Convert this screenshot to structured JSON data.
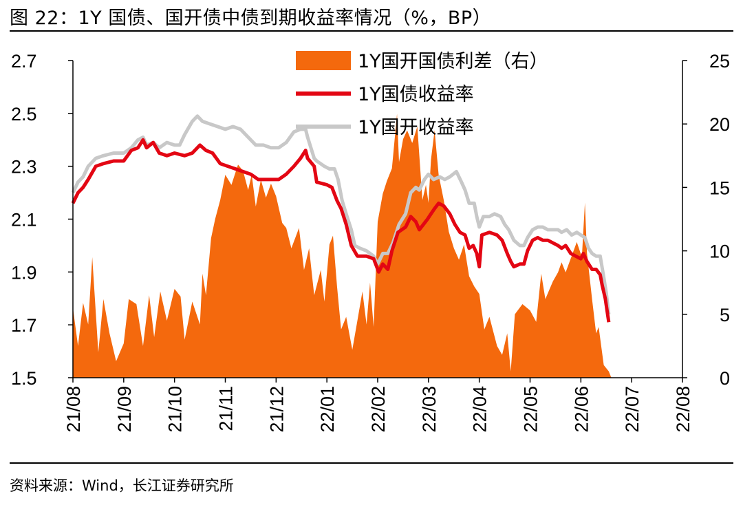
{
  "figure": {
    "title": "图 22：1Y 国债、国开债中债到期收益率情况（%，BP）",
    "source": "资料来源：Wind，长江证券研究所"
  },
  "colors": {
    "spread": "#F4690D",
    "treasury": "#E30613",
    "cdb": "#C8C8C8",
    "axis": "#000000"
  },
  "chart_data": {
    "type": "line+area",
    "title": "1Y 国债、国开债中债到期收益率情况（%，BP）",
    "left_axis": {
      "ylim": [
        1.5,
        2.7
      ],
      "ticks": [
        "2.7",
        "2.5",
        "2.3",
        "2.1",
        "1.9",
        "1.7",
        "1.5"
      ]
    },
    "right_axis": {
      "ylim": [
        0,
        25
      ],
      "ticks": [
        "25",
        "20",
        "15",
        "10",
        "5",
        "0"
      ]
    },
    "x_ticks": [
      "21/08",
      "21/09",
      "21/10",
      "21/11",
      "21/12",
      "22/01",
      "22/02",
      "22/03",
      "22/04",
      "22/05",
      "22/06",
      "22/07",
      "22/08"
    ],
    "legend_position": "top-center",
    "series": [
      {
        "name": "1Y国开国债利差（右）",
        "axis": "right",
        "kind": "area",
        "points": [
          [
            0,
            5.5
          ],
          [
            0.1,
            2.5
          ],
          [
            0.2,
            5.9
          ],
          [
            0.3,
            4.2
          ],
          [
            0.38,
            9.5
          ],
          [
            0.5,
            2.0
          ],
          [
            0.6,
            6.2
          ],
          [
            0.72,
            3.5
          ],
          [
            0.85,
            1.3
          ],
          [
            1.0,
            2.7
          ],
          [
            1.1,
            6.2
          ],
          [
            1.25,
            5.8
          ],
          [
            1.38,
            2.5
          ],
          [
            1.5,
            6.5
          ],
          [
            1.6,
            3.2
          ],
          [
            1.72,
            6.8
          ],
          [
            1.85,
            4.5
          ],
          [
            2.0,
            7.0
          ],
          [
            2.12,
            6.4
          ],
          [
            2.2,
            3.0
          ],
          [
            2.35,
            6.0
          ],
          [
            2.5,
            4.2
          ],
          [
            2.55,
            8.2
          ],
          [
            2.62,
            6.5
          ],
          [
            2.72,
            11.0
          ],
          [
            2.8,
            12.5
          ],
          [
            2.9,
            14.0
          ],
          [
            3.0,
            16.0
          ],
          [
            3.12,
            15.2
          ],
          [
            3.25,
            16.8
          ],
          [
            3.35,
            16.3
          ],
          [
            3.45,
            14.8
          ],
          [
            3.52,
            16.0
          ],
          [
            3.6,
            13.5
          ],
          [
            3.7,
            15.6
          ],
          [
            3.8,
            14.2
          ],
          [
            3.9,
            15.3
          ],
          [
            4.0,
            14.3
          ],
          [
            4.12,
            12.2
          ],
          [
            4.2,
            11.8
          ],
          [
            4.3,
            10.2
          ],
          [
            4.45,
            11.8
          ],
          [
            4.55,
            8.5
          ],
          [
            4.65,
            10.2
          ],
          [
            4.75,
            6.5
          ],
          [
            4.88,
            8.5
          ],
          [
            4.95,
            6.0
          ],
          [
            5.05,
            10.5
          ],
          [
            5.12,
            11.2
          ],
          [
            5.2,
            7.2
          ],
          [
            5.28,
            3.8
          ],
          [
            5.38,
            4.8
          ],
          [
            5.5,
            2.2
          ],
          [
            5.6,
            4.5
          ],
          [
            5.7,
            6.8
          ],
          [
            5.78,
            4.2
          ],
          [
            5.85,
            7.5
          ],
          [
            5.92,
            4.0
          ],
          [
            6.0,
            12.3
          ],
          [
            6.1,
            14.5
          ],
          [
            6.18,
            15.5
          ],
          [
            6.28,
            16.5
          ],
          [
            6.38,
            20.8
          ],
          [
            6.42,
            17.0
          ],
          [
            6.5,
            18.8
          ],
          [
            6.58,
            19.5
          ],
          [
            6.68,
            18.5
          ],
          [
            6.78,
            19.8
          ],
          [
            6.88,
            14.0
          ],
          [
            6.95,
            15.2
          ],
          [
            7.0,
            13.8
          ],
          [
            7.05,
            17.2
          ],
          [
            7.12,
            19.5
          ],
          [
            7.2,
            16.0
          ],
          [
            7.3,
            14.0
          ],
          [
            7.4,
            11.5
          ],
          [
            7.5,
            10.2
          ],
          [
            7.6,
            9.3
          ],
          [
            7.7,
            10.5
          ],
          [
            7.8,
            8.0
          ],
          [
            7.9,
            7.2
          ],
          [
            8.0,
            6.6
          ],
          [
            8.1,
            3.8
          ],
          [
            8.2,
            4.8
          ],
          [
            8.35,
            2.5
          ],
          [
            8.45,
            1.8
          ],
          [
            8.55,
            3.5
          ],
          [
            8.62,
            0.5
          ],
          [
            8.7,
            5.0
          ],
          [
            8.85,
            5.8
          ],
          [
            9.0,
            5.3
          ],
          [
            9.12,
            4.4
          ],
          [
            9.22,
            8.2
          ],
          [
            9.3,
            6.2
          ],
          [
            9.45,
            7.6
          ],
          [
            9.55,
            8.3
          ],
          [
            9.62,
            9.1
          ],
          [
            9.7,
            8.3
          ],
          [
            9.82,
            9.6
          ],
          [
            9.92,
            10.7
          ],
          [
            10.02,
            9.5
          ],
          [
            10.08,
            13.8
          ],
          [
            10.12,
            9.8
          ],
          [
            10.22,
            6.2
          ],
          [
            10.3,
            3.5
          ],
          [
            10.35,
            4.0
          ],
          [
            10.45,
            1.0
          ],
          [
            10.55,
            0.5
          ],
          [
            10.6,
            0
          ]
        ]
      },
      {
        "name": "1Y国债收益率",
        "axis": "left",
        "kind": "line",
        "points": [
          [
            0,
            2.16
          ],
          [
            0.1,
            2.2
          ],
          [
            0.2,
            2.22
          ],
          [
            0.3,
            2.25
          ],
          [
            0.45,
            2.3
          ],
          [
            0.6,
            2.31
          ],
          [
            0.8,
            2.32
          ],
          [
            1.0,
            2.32
          ],
          [
            1.15,
            2.36
          ],
          [
            1.28,
            2.37
          ],
          [
            1.38,
            2.4
          ],
          [
            1.45,
            2.37
          ],
          [
            1.58,
            2.39
          ],
          [
            1.7,
            2.35
          ],
          [
            1.85,
            2.34
          ],
          [
            2.0,
            2.35
          ],
          [
            2.2,
            2.34
          ],
          [
            2.35,
            2.35
          ],
          [
            2.5,
            2.38
          ],
          [
            2.62,
            2.36
          ],
          [
            2.75,
            2.35
          ],
          [
            2.9,
            2.31
          ],
          [
            3.05,
            2.3
          ],
          [
            3.2,
            2.29
          ],
          [
            3.35,
            2.28
          ],
          [
            3.5,
            2.27
          ],
          [
            3.65,
            2.25
          ],
          [
            3.85,
            2.25
          ],
          [
            4.05,
            2.25
          ],
          [
            4.2,
            2.27
          ],
          [
            4.35,
            2.3
          ],
          [
            4.48,
            2.33
          ],
          [
            4.58,
            2.36
          ],
          [
            4.62,
            2.33
          ],
          [
            4.75,
            2.3
          ],
          [
            4.8,
            2.24
          ],
          [
            5.0,
            2.23
          ],
          [
            5.1,
            2.22
          ],
          [
            5.2,
            2.17
          ],
          [
            5.28,
            2.14
          ],
          [
            5.38,
            2.08
          ],
          [
            5.48,
            2.0
          ],
          [
            5.6,
            1.96
          ],
          [
            5.78,
            1.96
          ],
          [
            5.92,
            1.95
          ],
          [
            6.02,
            1.9
          ],
          [
            6.1,
            1.93
          ],
          [
            6.2,
            1.91
          ],
          [
            6.28,
            1.98
          ],
          [
            6.4,
            2.05
          ],
          [
            6.55,
            2.07
          ],
          [
            6.65,
            2.11
          ],
          [
            6.75,
            2.09
          ],
          [
            6.82,
            2.06
          ],
          [
            6.9,
            2.08
          ],
          [
            6.98,
            2.1
          ],
          [
            7.05,
            2.12
          ],
          [
            7.12,
            2.14
          ],
          [
            7.2,
            2.16
          ],
          [
            7.3,
            2.15
          ],
          [
            7.42,
            2.12
          ],
          [
            7.52,
            2.08
          ],
          [
            7.62,
            2.05
          ],
          [
            7.72,
            2.04
          ],
          [
            7.8,
            1.99
          ],
          [
            7.88,
            2.0
          ],
          [
            7.95,
            1.97
          ],
          [
            8.0,
            1.92
          ],
          [
            8.05,
            2.04
          ],
          [
            8.2,
            2.05
          ],
          [
            8.35,
            2.04
          ],
          [
            8.45,
            2.02
          ],
          [
            8.55,
            1.97
          ],
          [
            8.62,
            1.94
          ],
          [
            8.68,
            1.92
          ],
          [
            8.8,
            1.93
          ],
          [
            8.88,
            1.93
          ],
          [
            8.95,
            1.98
          ],
          [
            9.05,
            2.02
          ],
          [
            9.15,
            2.03
          ],
          [
            9.25,
            2.02
          ],
          [
            9.35,
            2.02
          ],
          [
            9.45,
            2.01
          ],
          [
            9.55,
            2.0
          ],
          [
            9.62,
            1.99
          ],
          [
            9.7,
            2.0
          ],
          [
            9.8,
            1.97
          ],
          [
            9.9,
            1.96
          ],
          [
            10.0,
            1.95
          ],
          [
            10.05,
            1.97
          ],
          [
            10.12,
            1.94
          ],
          [
            10.22,
            1.91
          ],
          [
            10.3,
            1.91
          ],
          [
            10.38,
            1.89
          ],
          [
            10.42,
            1.85
          ],
          [
            10.48,
            1.8
          ],
          [
            10.55,
            1.71
          ]
        ]
      },
      {
        "name": "1Y国开收益率",
        "axis": "left",
        "kind": "line",
        "points": [
          [
            0,
            2.2
          ],
          [
            0.1,
            2.24
          ],
          [
            0.2,
            2.26
          ],
          [
            0.3,
            2.3
          ],
          [
            0.45,
            2.33
          ],
          [
            0.6,
            2.34
          ],
          [
            0.8,
            2.35
          ],
          [
            1.0,
            2.35
          ],
          [
            1.15,
            2.37
          ],
          [
            1.28,
            2.4
          ],
          [
            1.38,
            2.41
          ],
          [
            1.45,
            2.38
          ],
          [
            1.58,
            2.39
          ],
          [
            1.7,
            2.37
          ],
          [
            1.85,
            2.39
          ],
          [
            2.0,
            2.38
          ],
          [
            2.1,
            2.38
          ],
          [
            2.2,
            2.42
          ],
          [
            2.35,
            2.47
          ],
          [
            2.45,
            2.49
          ],
          [
            2.55,
            2.47
          ],
          [
            2.7,
            2.46
          ],
          [
            2.85,
            2.45
          ],
          [
            3.0,
            2.44
          ],
          [
            3.15,
            2.45
          ],
          [
            3.3,
            2.44
          ],
          [
            3.45,
            2.41
          ],
          [
            3.6,
            2.38
          ],
          [
            3.75,
            2.38
          ],
          [
            3.9,
            2.37
          ],
          [
            4.05,
            2.37
          ],
          [
            4.2,
            2.39
          ],
          [
            4.35,
            2.43
          ],
          [
            4.48,
            2.44
          ],
          [
            4.58,
            2.44
          ],
          [
            4.62,
            2.41
          ],
          [
            4.75,
            2.33
          ],
          [
            4.8,
            2.32
          ],
          [
            4.95,
            2.3
          ],
          [
            5.05,
            2.29
          ],
          [
            5.15,
            2.29
          ],
          [
            5.22,
            2.25
          ],
          [
            5.3,
            2.17
          ],
          [
            5.38,
            2.12
          ],
          [
            5.48,
            2.06
          ],
          [
            5.55,
            2.0
          ],
          [
            5.65,
            1.99
          ],
          [
            5.78,
            1.98
          ],
          [
            5.92,
            1.96
          ],
          [
            6.0,
            1.93
          ],
          [
            6.1,
            1.97
          ],
          [
            6.2,
            1.97
          ],
          [
            6.3,
            2.01
          ],
          [
            6.42,
            2.08
          ],
          [
            6.55,
            2.12
          ],
          [
            6.65,
            2.2
          ],
          [
            6.75,
            2.22
          ],
          [
            6.82,
            2.21
          ],
          [
            6.92,
            2.25
          ],
          [
            7.0,
            2.27
          ],
          [
            7.1,
            2.25
          ],
          [
            7.22,
            2.26
          ],
          [
            7.32,
            2.25
          ],
          [
            7.42,
            2.26
          ],
          [
            7.55,
            2.28
          ],
          [
            7.65,
            2.24
          ],
          [
            7.72,
            2.21
          ],
          [
            7.8,
            2.16
          ],
          [
            7.9,
            2.16
          ],
          [
            7.95,
            2.11
          ],
          [
            8.0,
            2.07
          ],
          [
            8.08,
            2.11
          ],
          [
            8.2,
            2.11
          ],
          [
            8.3,
            2.12
          ],
          [
            8.42,
            2.11
          ],
          [
            8.5,
            2.08
          ],
          [
            8.58,
            2.06
          ],
          [
            8.68,
            2.02
          ],
          [
            8.8,
            2.0
          ],
          [
            8.88,
            2.0
          ],
          [
            8.95,
            2.03
          ],
          [
            9.05,
            2.06
          ],
          [
            9.15,
            2.07
          ],
          [
            9.25,
            2.07
          ],
          [
            9.35,
            2.06
          ],
          [
            9.45,
            2.06
          ],
          [
            9.55,
            2.06
          ],
          [
            9.62,
            2.05
          ],
          [
            9.72,
            2.06
          ],
          [
            9.82,
            2.04
          ],
          [
            9.92,
            2.05
          ],
          [
            10.0,
            2.04
          ],
          [
            10.08,
            2.03
          ],
          [
            10.15,
            1.99
          ],
          [
            10.22,
            1.97
          ],
          [
            10.3,
            1.96
          ],
          [
            10.38,
            1.96
          ],
          [
            10.45,
            1.88
          ],
          [
            10.5,
            1.82
          ],
          [
            10.55,
            1.74
          ]
        ]
      }
    ]
  }
}
